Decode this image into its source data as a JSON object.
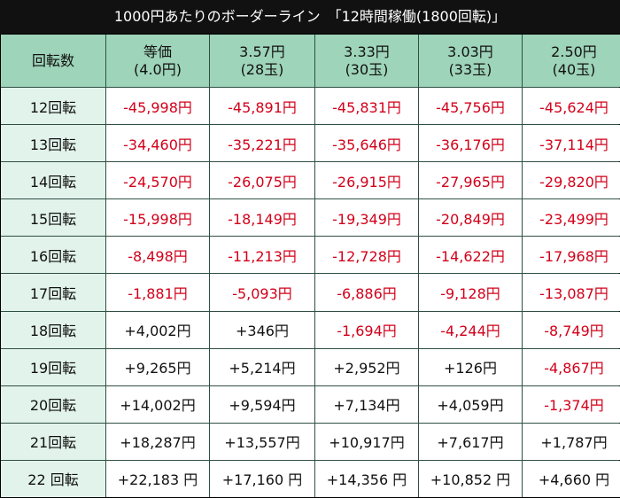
{
  "title": "1000円あたりのボーダーライン　「12時間稼働(1800回転)」",
  "header": {
    "corner": "回転数",
    "columns": [
      {
        "line1": "等価",
        "line2": "(4.0円)"
      },
      {
        "line1": "3.57円",
        "line2": "(28玉)"
      },
      {
        "line1": "3.33円",
        "line2": "(30玉)"
      },
      {
        "line1": "3.03円",
        "line2": "(33玉)"
      },
      {
        "line1": "2.50円",
        "line2": "(40玉)"
      }
    ]
  },
  "table": {
    "rows": [
      {
        "label": "12回転",
        "cells": [
          "-45,998円",
          "-45,891円",
          "-45,831円",
          "-45,756円",
          "-45,624円"
        ]
      },
      {
        "label": "13回転",
        "cells": [
          "-34,460円",
          "-35,221円",
          "-35,646円",
          "-36,176円",
          "-37,114円"
        ]
      },
      {
        "label": "14回転",
        "cells": [
          "-24,570円",
          "-26,075円",
          "-26,915円",
          "-27,965円",
          "-29,820円"
        ]
      },
      {
        "label": "15回転",
        "cells": [
          "-15,998円",
          "-18,149円",
          "-19,349円",
          "-20,849円",
          "-23,499円"
        ]
      },
      {
        "label": "16回転",
        "cells": [
          "-8,498円",
          "-11,213円",
          "-12,728円",
          "-14,622円",
          "-17,968円"
        ]
      },
      {
        "label": "17回転",
        "cells": [
          "-1,881円",
          "-5,093円",
          "-6,886円",
          "-9,128円",
          "-13,087円"
        ]
      },
      {
        "label": "18回転",
        "cells": [
          "+4,002円",
          "+346円",
          "-1,694円",
          "-4,244円",
          "-8,749円"
        ]
      },
      {
        "label": "19回転",
        "cells": [
          "+9,265円",
          "+5,214円",
          "+2,952円",
          "+126円",
          "-4,867円"
        ]
      },
      {
        "label": "20回転",
        "cells": [
          "+14,002円",
          "+9,594円",
          "+7,134円",
          "+4,059円",
          "-1,374円"
        ]
      },
      {
        "label": "21回転",
        "cells": [
          "+18,287円",
          "+13,557円",
          "+10,917円",
          "+7,617円",
          "+1,787円"
        ]
      },
      {
        "label": "22 回転",
        "cells": [
          "+22,183 円",
          "+17,160 円",
          "+14,356 円",
          "+10,852 円",
          "+4,660 円"
        ]
      }
    ]
  }
}
